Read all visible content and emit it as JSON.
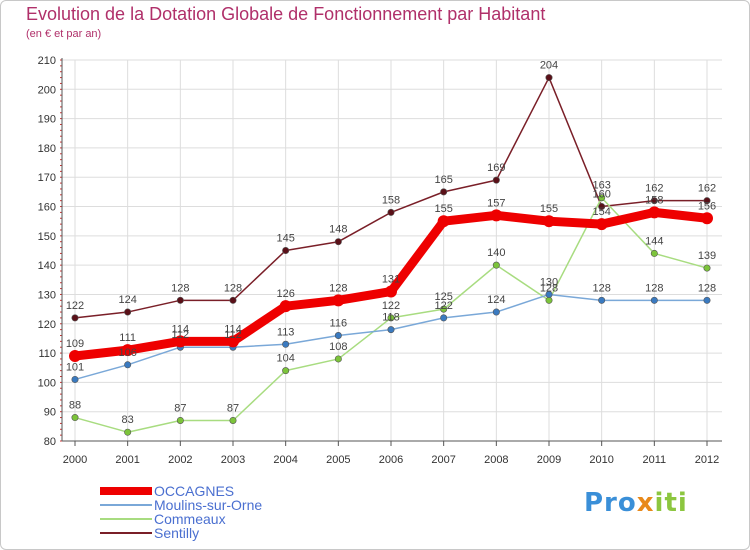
{
  "title": "Evolution de la Dotation Globale de Fonctionnement par Habitant",
  "subtitle": "(en € et par an)",
  "brand": {
    "part1": "Pro",
    "part2": "x",
    "part3": "iti",
    "color1": "#3a8fd8",
    "color2": "#e8891a",
    "color3": "#8cc63f"
  },
  "chart_data": {
    "type": "line",
    "title": "Evolution de la Dotation Globale de Fonctionnement par Habitant",
    "ylabel": "(en € et par an)",
    "xlabel": "",
    "x": [
      "2000",
      "2001",
      "2002",
      "2003",
      "2004",
      "2005",
      "2006",
      "2007",
      "2008",
      "2009",
      "2010",
      "2011",
      "2012"
    ],
    "ylim": [
      80,
      210
    ],
    "yticks": [
      80,
      90,
      100,
      110,
      120,
      130,
      140,
      150,
      160,
      170,
      180,
      190,
      200,
      210
    ],
    "grid": true,
    "legend_position": "bottom-left",
    "series": [
      {
        "name": "Sentilly",
        "color": "#7a1f28",
        "point_color": "#5a1018",
        "width": "thin",
        "values": [
          122,
          124,
          128,
          128,
          145,
          148,
          158,
          165,
          169,
          204,
          160,
          162,
          162
        ],
        "labels": [
          "122",
          "124",
          "128",
          "128",
          "145",
          "148",
          "158",
          "165",
          "169",
          "204",
          "160",
          "162",
          "162"
        ]
      },
      {
        "name": "Commeaux",
        "color": "#a8dc80",
        "point_color": "#7cc43a",
        "width": "thin",
        "values": [
          88,
          83,
          87,
          87,
          104,
          108,
          122,
          125,
          140,
          128,
          163,
          144,
          139
        ],
        "labels": [
          "88",
          "83",
          "87",
          "87",
          "104",
          "108",
          "122",
          "125",
          "140",
          "128",
          "163",
          "144",
          "139"
        ]
      },
      {
        "name": "Moulins-sur-Orne",
        "color": "#7aa8d8",
        "point_color": "#3a7ac0",
        "width": "thin",
        "values": [
          101,
          106,
          112,
          112,
          113,
          116,
          118,
          122,
          124,
          130,
          128,
          128,
          128
        ],
        "labels": [
          "101",
          "106",
          "112",
          "112",
          "113",
          "116",
          "118",
          "122",
          "124",
          "130",
          "128",
          "128",
          "128"
        ]
      },
      {
        "name": "OCCAGNES",
        "color": "#ee0000",
        "point_color": "#ee0000",
        "width": "thick",
        "values": [
          109,
          111,
          114,
          114,
          126,
          128,
          131,
          155,
          157,
          155,
          154,
          158,
          156
        ],
        "labels": [
          "109",
          "111",
          "114",
          "114",
          "126",
          "128",
          "131",
          "155",
          "157",
          "155",
          "154",
          "158",
          "156"
        ]
      }
    ],
    "legend": [
      "OCCAGNES",
      "Moulins-sur-Orne",
      "Commeaux",
      "Sentilly"
    ]
  }
}
